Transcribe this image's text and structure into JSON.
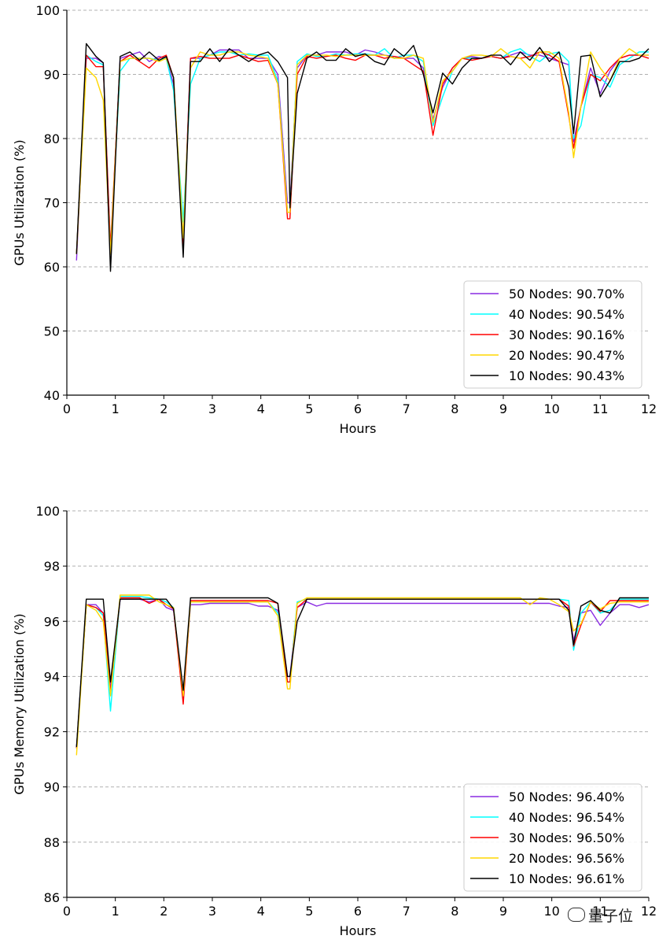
{
  "chart_data": [
    {
      "type": "line",
      "title": "",
      "xlabel": "Hours",
      "ylabel": "GPUs Utilization (%)",
      "xlim": [
        0,
        12
      ],
      "ylim": [
        40,
        100
      ],
      "xticks": [
        "0",
        "1",
        "2",
        "3",
        "4",
        "5",
        "6",
        "7",
        "8",
        "9",
        "10",
        "11",
        "12"
      ],
      "yticks": [
        "40",
        "50",
        "60",
        "70",
        "80",
        "90",
        "100"
      ],
      "grid": "horizontal dashed",
      "legend_position": "lower-right",
      "x": [
        0.2,
        0.4,
        0.6,
        0.75,
        0.9,
        1.1,
        1.3,
        1.5,
        1.7,
        1.9,
        2.05,
        2.2,
        2.4,
        2.55,
        2.75,
        2.95,
        3.15,
        3.35,
        3.55,
        3.75,
        3.95,
        4.15,
        4.35,
        4.55,
        4.6,
        4.75,
        4.95,
        5.15,
        5.35,
        5.55,
        5.75,
        5.95,
        6.15,
        6.35,
        6.55,
        6.75,
        6.95,
        7.15,
        7.35,
        7.55,
        7.75,
        7.95,
        8.15,
        8.35,
        8.55,
        8.75,
        8.95,
        9.15,
        9.35,
        9.55,
        9.75,
        9.95,
        10.15,
        10.35,
        10.45,
        10.6,
        10.8,
        11.0,
        11.2,
        11.4,
        11.6,
        11.8,
        12.0
      ],
      "series": [
        {
          "name": "50 Nodes: 90.70%",
          "color": "#8a2be2",
          "values": [
            61,
            92.5,
            92.5,
            91.8,
            62,
            92.5,
            93,
            93.5,
            92,
            92.8,
            92.5,
            88.5,
            64,
            92.5,
            92.5,
            93,
            93.8,
            93.8,
            93.8,
            92.5,
            92.5,
            92.5,
            90,
            70,
            70,
            91,
            93,
            93,
            93.5,
            93.5,
            93.5,
            93,
            93.8,
            93.5,
            93,
            92.8,
            92.5,
            92.5,
            91,
            83,
            88,
            91,
            92.5,
            92.8,
            92.5,
            92.8,
            92.5,
            93,
            93.5,
            93,
            93,
            92.5,
            92,
            91.5,
            79.5,
            85,
            91,
            87,
            90.5,
            92.5,
            93,
            93,
            93
          ]
        },
        {
          "name": "40 Nodes: 90.54%",
          "color": "#00ffff",
          "values": [
            62,
            93,
            92,
            91.5,
            63,
            90.5,
            92.5,
            92.5,
            92.5,
            92.2,
            92.5,
            87.5,
            67,
            88.5,
            92.5,
            93,
            93.5,
            93.5,
            93,
            93.2,
            93,
            93,
            89,
            68.5,
            68.5,
            92,
            93.2,
            92.8,
            92.8,
            93.2,
            93,
            93.2,
            93.2,
            93,
            94,
            92.5,
            93,
            93,
            92,
            82,
            86.5,
            90.5,
            92.5,
            92.5,
            92.5,
            92.8,
            92.5,
            93.5,
            94,
            92.8,
            92,
            93.2,
            93.5,
            92,
            80,
            82,
            90,
            89.5,
            88,
            91.5,
            92.5,
            93.5,
            93.5
          ]
        },
        {
          "name": "30 Nodes: 90.16%",
          "color": "#ff0000",
          "values": [
            62,
            93,
            91.2,
            91.2,
            63,
            92,
            93,
            92,
            91,
            92.5,
            93,
            89.5,
            63,
            92.5,
            92.8,
            92.5,
            92.5,
            92.5,
            93,
            92.5,
            92,
            92.2,
            88.5,
            67.5,
            67.5,
            90,
            92.8,
            92.5,
            92.8,
            93,
            92.5,
            92.2,
            93,
            93,
            92.5,
            92.8,
            92.5,
            91.5,
            90.5,
            80.5,
            88.5,
            91,
            92.5,
            92.2,
            92.5,
            92.8,
            92.5,
            92.8,
            92.5,
            92.8,
            93.5,
            93,
            92,
            83.5,
            78.5,
            85,
            90,
            89,
            91,
            92.5,
            93,
            93,
            92.5
          ]
        },
        {
          "name": "20 Nodes: 90.47%",
          "color": "#ffd700",
          "values": [
            62,
            91,
            89.5,
            86,
            62,
            92,
            92.5,
            92.5,
            92.5,
            92,
            92.5,
            89.5,
            64.5,
            91,
            93.5,
            93,
            93,
            93.5,
            93.5,
            93,
            92.8,
            92.5,
            88.5,
            68.5,
            68.5,
            91.5,
            93,
            93,
            93,
            92.8,
            93,
            93,
            93,
            93,
            93,
            92.5,
            92.5,
            93,
            92.5,
            82.5,
            89,
            90.5,
            92.5,
            93,
            93,
            92.8,
            94,
            92.8,
            92.5,
            91,
            93.5,
            93.5,
            92.5,
            84,
            77,
            85,
            93.5,
            91,
            89,
            92.5,
            94,
            93,
            93
          ]
        },
        {
          "name": "10 Nodes: 90.43%",
          "color": "#000000",
          "values": [
            62,
            94.8,
            92.8,
            91.8,
            59.3,
            92.8,
            93.5,
            92.2,
            93.5,
            92.2,
            92.8,
            89.5,
            61.5,
            92,
            92,
            94,
            92,
            94,
            93,
            92,
            93,
            93.5,
            92,
            89.5,
            69.2,
            87,
            92.5,
            93.5,
            92.2,
            92.2,
            94,
            92.8,
            93.2,
            92,
            91.5,
            94,
            92.8,
            94.5,
            90,
            84,
            90.2,
            88.5,
            91,
            92.5,
            92.5,
            93,
            93,
            91.5,
            93.5,
            92.2,
            94.2,
            92,
            93.5,
            88,
            80.8,
            92.8,
            93,
            86.5,
            89,
            92,
            92,
            92.5,
            94
          ]
        }
      ]
    },
    {
      "type": "line",
      "title": "",
      "xlabel": "Hours",
      "ylabel": "GPUs Memory Utilization (%)",
      "xlim": [
        0,
        12
      ],
      "ylim": [
        86,
        100
      ],
      "xticks": [
        "0",
        "1",
        "2",
        "3",
        "4",
        "5",
        "6",
        "7",
        "8",
        "9",
        "10",
        "11",
        "12"
      ],
      "yticks": [
        "86",
        "88",
        "90",
        "92",
        "94",
        "96",
        "98",
        "100"
      ],
      "grid": "horizontal dashed",
      "legend_position": "lower-right",
      "x": [
        0.2,
        0.4,
        0.6,
        0.75,
        0.9,
        1.1,
        1.3,
        1.5,
        1.7,
        1.9,
        2.05,
        2.2,
        2.4,
        2.55,
        2.75,
        2.95,
        3.15,
        3.35,
        3.55,
        3.75,
        3.95,
        4.15,
        4.35,
        4.55,
        4.6,
        4.75,
        4.95,
        5.15,
        5.35,
        5.55,
        5.75,
        5.95,
        6.15,
        6.35,
        6.55,
        6.75,
        6.95,
        7.15,
        7.35,
        7.55,
        7.75,
        7.95,
        8.15,
        8.35,
        8.55,
        8.75,
        8.95,
        9.15,
        9.35,
        9.55,
        9.75,
        9.95,
        10.15,
        10.35,
        10.45,
        10.6,
        10.8,
        11.0,
        11.2,
        11.4,
        11.6,
        11.8,
        12.0
      ],
      "series": [
        {
          "name": "50 Nodes: 96.40%",
          "color": "#8a2be2",
          "values": [
            91.4,
            96.6,
            96.6,
            96.3,
            93.6,
            96.8,
            96.8,
            96.8,
            96.7,
            96.8,
            96.5,
            96.4,
            93.3,
            96.6,
            96.6,
            96.65,
            96.65,
            96.65,
            96.65,
            96.65,
            96.55,
            96.55,
            96.4,
            94,
            94,
            96.5,
            96.7,
            96.55,
            96.65,
            96.65,
            96.65,
            96.65,
            96.65,
            96.65,
            96.65,
            96.65,
            96.65,
            96.65,
            96.65,
            96.65,
            96.65,
            96.65,
            96.65,
            96.65,
            96.65,
            96.65,
            96.65,
            96.65,
            96.65,
            96.65,
            96.65,
            96.65,
            96.55,
            96.5,
            95.3,
            96.3,
            96.4,
            95.85,
            96.3,
            96.6,
            96.6,
            96.5,
            96.6
          ]
        },
        {
          "name": "40 Nodes: 96.54%",
          "color": "#00ffff",
          "values": [
            91.4,
            96.6,
            96.5,
            96.2,
            92.75,
            96.9,
            96.9,
            96.9,
            96.85,
            96.8,
            96.7,
            96.5,
            93.2,
            96.7,
            96.7,
            96.7,
            96.7,
            96.7,
            96.7,
            96.7,
            96.7,
            96.7,
            96.3,
            93.8,
            93.8,
            96.7,
            96.8,
            96.8,
            96.8,
            96.8,
            96.8,
            96.8,
            96.8,
            96.8,
            96.8,
            96.8,
            96.8,
            96.8,
            96.8,
            96.8,
            96.8,
            96.8,
            96.8,
            96.8,
            96.8,
            96.8,
            96.8,
            96.8,
            96.8,
            96.8,
            96.8,
            96.8,
            96.8,
            96.75,
            94.95,
            96.3,
            96.7,
            96.3,
            96.4,
            96.8,
            96.8,
            96.8,
            96.8
          ]
        },
        {
          "name": "30 Nodes: 96.50%",
          "color": "#ff0000",
          "values": [
            91.4,
            96.6,
            96.5,
            96.3,
            93.4,
            96.85,
            96.85,
            96.85,
            96.65,
            96.8,
            96.6,
            96.45,
            93,
            96.75,
            96.75,
            96.75,
            96.75,
            96.75,
            96.75,
            96.75,
            96.75,
            96.75,
            96.65,
            93.8,
            93.8,
            96.5,
            96.8,
            96.8,
            96.8,
            96.8,
            96.8,
            96.8,
            96.8,
            96.8,
            96.8,
            96.8,
            96.8,
            96.8,
            96.8,
            96.8,
            96.8,
            96.8,
            96.8,
            96.8,
            96.8,
            96.8,
            96.8,
            96.8,
            96.8,
            96.8,
            96.8,
            96.8,
            96.8,
            96.55,
            95.1,
            95.85,
            96.7,
            96.35,
            96.75,
            96.75,
            96.75,
            96.75,
            96.75
          ]
        },
        {
          "name": "20 Nodes: 96.56%",
          "color": "#ffd700",
          "values": [
            91.15,
            96.6,
            96.4,
            96,
            93.3,
            96.95,
            96.95,
            96.95,
            96.95,
            96.7,
            96.6,
            96.5,
            93.3,
            96.7,
            96.7,
            96.7,
            96.7,
            96.7,
            96.7,
            96.7,
            96.7,
            96.7,
            96.2,
            93.55,
            93.55,
            96.65,
            96.85,
            96.85,
            96.85,
            96.85,
            96.85,
            96.85,
            96.85,
            96.85,
            96.85,
            96.85,
            96.85,
            96.85,
            96.85,
            96.85,
            96.85,
            96.85,
            96.85,
            96.85,
            96.85,
            96.85,
            96.85,
            96.85,
            96.85,
            96.6,
            96.85,
            96.8,
            96.6,
            96.35,
            95.65,
            95.9,
            96.7,
            96.45,
            96.65,
            96.7,
            96.7,
            96.7,
            96.7
          ]
        },
        {
          "name": "10 Nodes: 96.61%",
          "color": "#000000",
          "values": [
            91.45,
            96.8,
            96.8,
            96.8,
            93.8,
            96.8,
            96.8,
            96.8,
            96.8,
            96.8,
            96.8,
            96.45,
            93.5,
            96.85,
            96.85,
            96.85,
            96.85,
            96.85,
            96.85,
            96.85,
            96.85,
            96.85,
            96.65,
            94,
            94,
            96,
            96.8,
            96.8,
            96.8,
            96.8,
            96.8,
            96.8,
            96.8,
            96.8,
            96.8,
            96.8,
            96.8,
            96.8,
            96.8,
            96.8,
            96.8,
            96.8,
            96.8,
            96.8,
            96.8,
            96.8,
            96.8,
            96.8,
            96.8,
            96.8,
            96.8,
            96.8,
            96.8,
            96.4,
            95.15,
            96.55,
            96.75,
            96.4,
            96.3,
            96.85,
            96.85,
            96.85,
            96.85
          ]
        }
      ]
    }
  ],
  "watermark": {
    "text": "量子位",
    "icon": "wechat-bubble-icon"
  }
}
